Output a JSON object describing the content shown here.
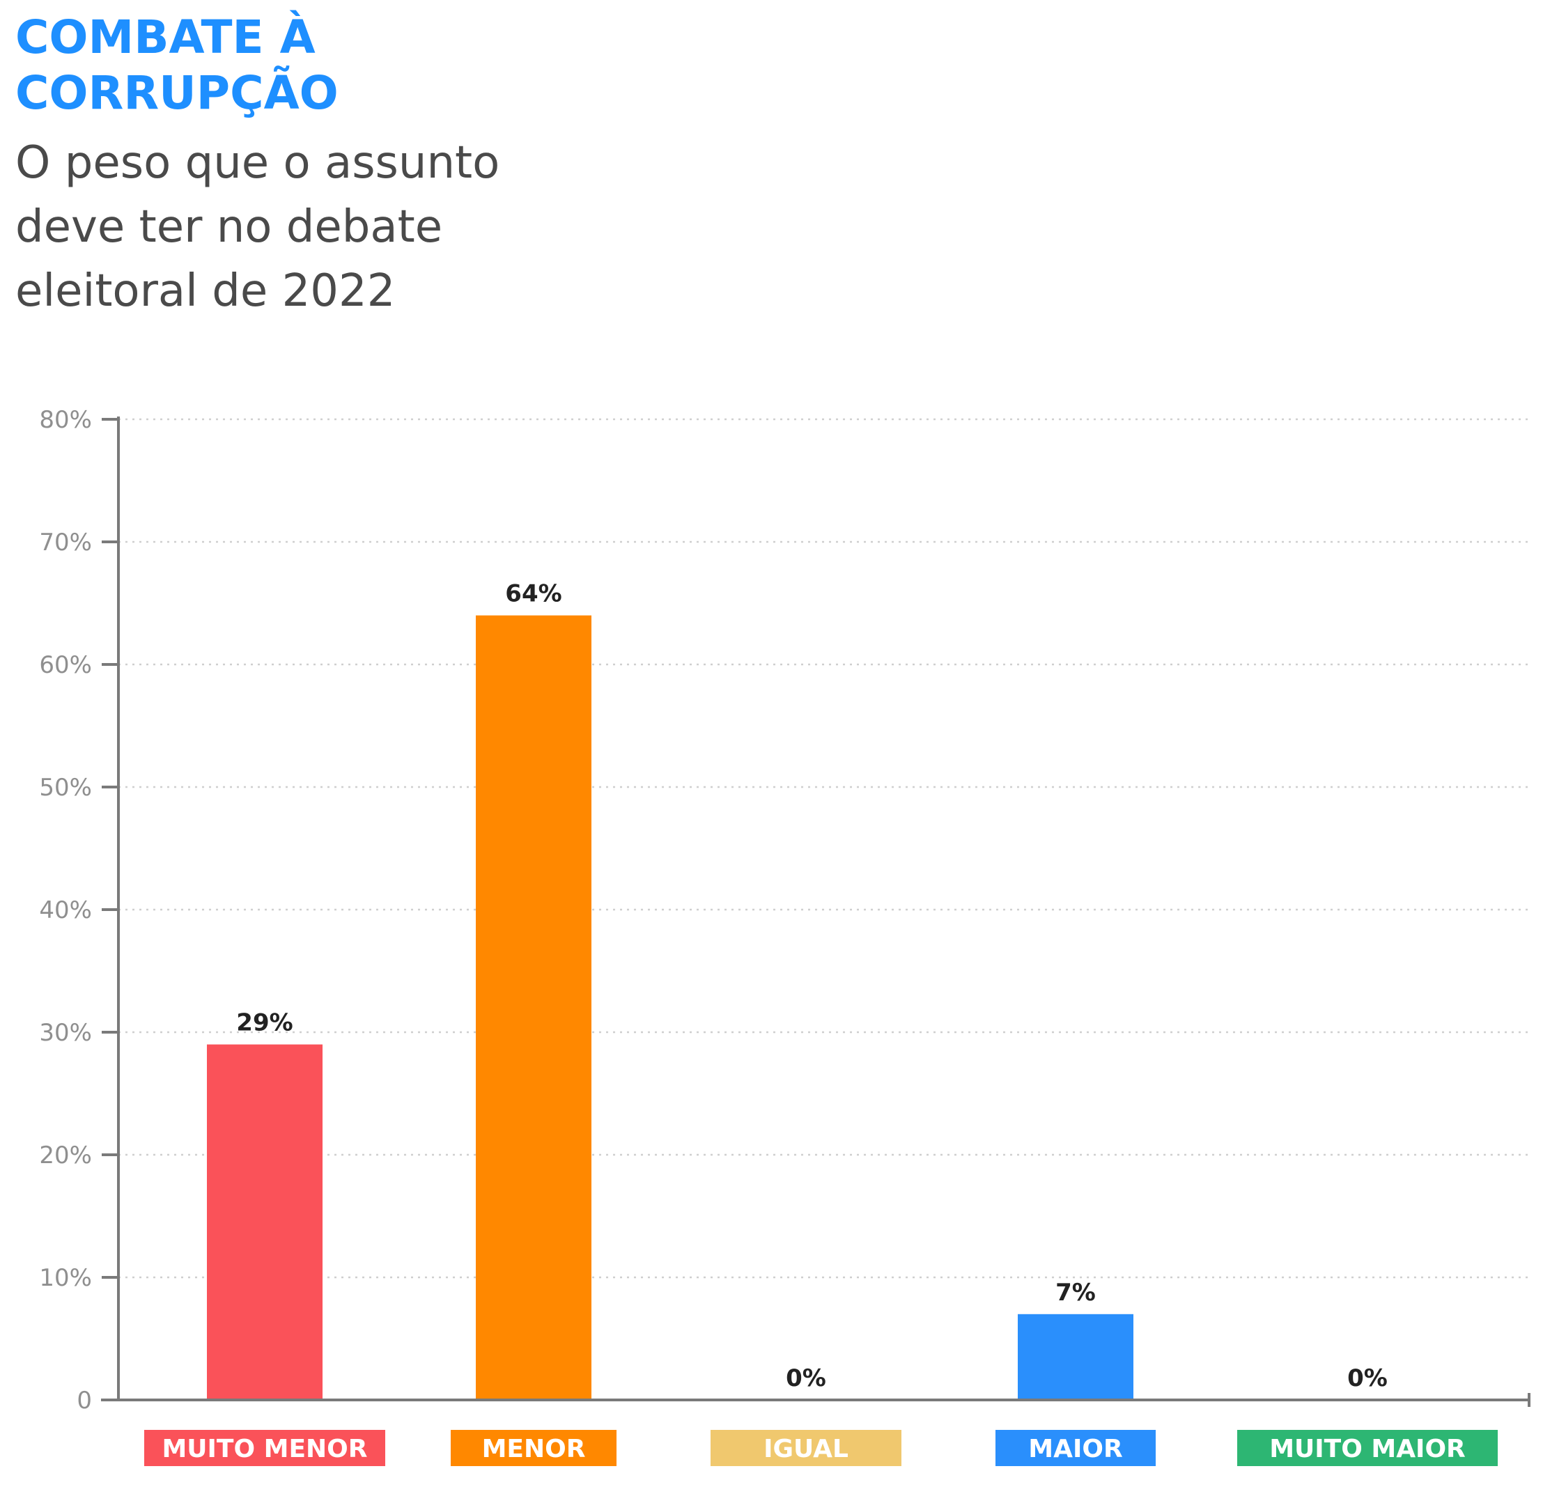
{
  "title": "COMBATE À\nCORRUPÇÃO",
  "subtitle": "O peso que o assunto\ndeve ter no debate\neleitoral de 2022",
  "chart_data": {
    "type": "bar",
    "title": "COMBATE À CORRUPÇÃO",
    "subtitle": "O peso que o assunto deve ter no debate eleitoral de 2022",
    "xlabel": "",
    "ylabel": "",
    "categories": [
      "MUITO MENOR",
      "MENOR",
      "IGUAL",
      "MAIOR",
      "MUITO MAIOR"
    ],
    "values": [
      29,
      64,
      0,
      7,
      0
    ],
    "value_labels": [
      "29%",
      "64%",
      "0%",
      "7%",
      "0%"
    ],
    "colors": [
      "#fa5259",
      "#ff8800",
      "#f0c86e",
      "#2a8ffc",
      "#2db673"
    ],
    "ylim": [
      0,
      80
    ],
    "yticks": [
      0,
      10,
      20,
      30,
      40,
      50,
      60,
      70,
      80
    ],
    "ytick_labels": [
      "0",
      "10%",
      "20%",
      "30%",
      "40%",
      "50%",
      "60%",
      "70%",
      "80%"
    ],
    "grid": true,
    "legend": "none"
  }
}
